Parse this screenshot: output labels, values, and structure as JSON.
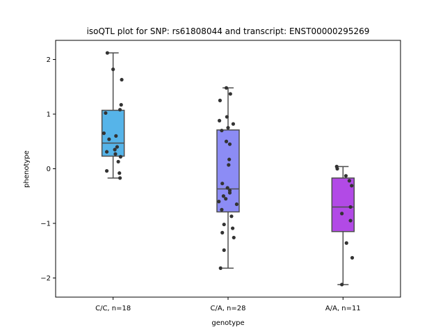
{
  "chart_data": {
    "type": "box",
    "title": "isoQTL plot for SNP: rs61808044 and transcript: ENST00000295269",
    "xlabel": "genotype",
    "ylabel": "phenotype",
    "ylim": [
      -2.35,
      2.35
    ],
    "yticks": [
      2,
      1,
      0,
      -1,
      -2
    ],
    "ytick_labels": [
      "2",
      "1",
      "0",
      "−1",
      "−2"
    ],
    "grid": false,
    "categories": [
      "C/C, n=18",
      "C/A, n=28",
      "A/A, n=11"
    ],
    "colors": [
      "#56b4e9",
      "#8c8cf5",
      "#b24ae6"
    ],
    "point_color": "#333333",
    "boxes": [
      {
        "q1": 0.23,
        "median": 0.47,
        "q3": 1.07,
        "whisker_low": -0.17,
        "whisker_high": 2.12
      },
      {
        "q1": -0.79,
        "median": -0.37,
        "q3": 0.71,
        "whisker_low": -1.82,
        "whisker_high": 1.48
      },
      {
        "q1": -1.15,
        "median": -0.7,
        "q3": -0.17,
        "whisker_low": -2.12,
        "whisker_high": 0.04
      }
    ],
    "points": [
      [
        {
          "y": 2.12,
          "j": -0.1
        },
        {
          "y": 1.82,
          "j": 0.0
        },
        {
          "y": 1.63,
          "j": 0.15
        },
        {
          "y": 1.17,
          "j": 0.14
        },
        {
          "y": 1.08,
          "j": 0.12
        },
        {
          "y": 1.02,
          "j": -0.13
        },
        {
          "y": 0.65,
          "j": -0.16
        },
        {
          "y": 0.6,
          "j": 0.05
        },
        {
          "y": 0.54,
          "j": -0.07
        },
        {
          "y": 0.4,
          "j": 0.07
        },
        {
          "y": 0.35,
          "j": 0.03
        },
        {
          "y": 0.31,
          "j": -0.11
        },
        {
          "y": 0.27,
          "j": 0.04
        },
        {
          "y": 0.22,
          "j": 0.13
        },
        {
          "y": 0.13,
          "j": 0.09
        },
        {
          "y": -0.04,
          "j": -0.11
        },
        {
          "y": -0.08,
          "j": 0.11
        },
        {
          "y": -0.17,
          "j": 0.12
        }
      ],
      [
        {
          "y": 1.48,
          "j": -0.03
        },
        {
          "y": 1.37,
          "j": 0.04
        },
        {
          "y": 1.25,
          "j": -0.14
        },
        {
          "y": 0.95,
          "j": -0.02
        },
        {
          "y": 0.88,
          "j": -0.15
        },
        {
          "y": 0.82,
          "j": 0.09
        },
        {
          "y": 0.75,
          "j": 0.0
        },
        {
          "y": 0.7,
          "j": -0.11
        },
        {
          "y": 0.5,
          "j": -0.03
        },
        {
          "y": 0.45,
          "j": 0.03
        },
        {
          "y": 0.17,
          "j": 0.02
        },
        {
          "y": 0.07,
          "j": 0.01
        },
        {
          "y": -0.27,
          "j": -0.1
        },
        {
          "y": -0.35,
          "j": -0.01
        },
        {
          "y": -0.4,
          "j": 0.03
        },
        {
          "y": -0.44,
          "j": 0.03
        },
        {
          "y": -0.5,
          "j": -0.08
        },
        {
          "y": -0.55,
          "j": -0.04
        },
        {
          "y": -0.6,
          "j": -0.16
        },
        {
          "y": -0.65,
          "j": 0.15
        },
        {
          "y": -0.75,
          "j": -0.11
        },
        {
          "y": -0.87,
          "j": 0.06
        },
        {
          "y": -1.02,
          "j": -0.07
        },
        {
          "y": -1.09,
          "j": 0.08
        },
        {
          "y": -1.17,
          "j": -0.1
        },
        {
          "y": -1.26,
          "j": 0.1
        },
        {
          "y": -1.49,
          "j": -0.07
        },
        {
          "y": -1.82,
          "j": -0.13
        }
      ],
      [
        {
          "y": 0.04,
          "j": -0.11
        },
        {
          "y": 0.0,
          "j": -0.1
        },
        {
          "y": -0.13,
          "j": 0.05
        },
        {
          "y": -0.22,
          "j": 0.11
        },
        {
          "y": -0.31,
          "j": 0.15
        },
        {
          "y": -0.7,
          "j": 0.13
        },
        {
          "y": -0.82,
          "j": -0.02
        },
        {
          "y": -0.95,
          "j": 0.13
        },
        {
          "y": -1.36,
          "j": 0.06
        },
        {
          "y": -1.63,
          "j": 0.16
        },
        {
          "y": -2.12,
          "j": -0.02
        }
      ]
    ]
  }
}
